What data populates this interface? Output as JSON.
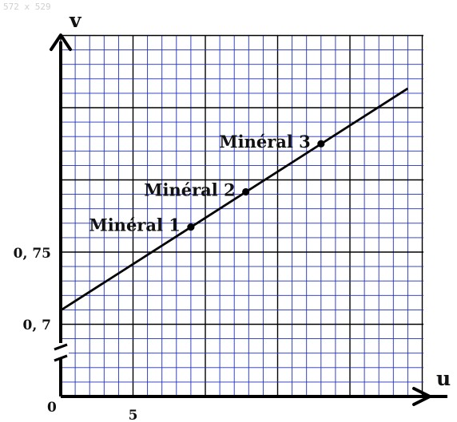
{
  "watermark": "572 x 529",
  "chart_data": {
    "type": "line",
    "xlabel": "u",
    "ylabel": "v",
    "origin_label": "0",
    "xlim": [
      0,
      24
    ],
    "ylim": [
      0.65,
      0.87
    ],
    "x_tick": {
      "value": 5,
      "label": "5"
    },
    "y_ticks": [
      {
        "value": 0.7,
        "label": "0, 7"
      },
      {
        "value": 0.75,
        "label": "0, 75"
      }
    ],
    "axis_break": "y",
    "grid": true,
    "line": {
      "x": [
        0,
        24
      ],
      "y": [
        0.71,
        0.8645
      ]
    },
    "points": [
      {
        "name": "Minéral 1",
        "x": 9.0,
        "y": 0.768
      },
      {
        "name": "Minéral 2",
        "x": 12.8,
        "y": 0.7925
      },
      {
        "name": "Minéral 3",
        "x": 18.0,
        "y": 0.826
      }
    ],
    "colors": {
      "minor_grid": "#1f2fbf",
      "major_grid": "#000000",
      "line": "#000000"
    }
  }
}
